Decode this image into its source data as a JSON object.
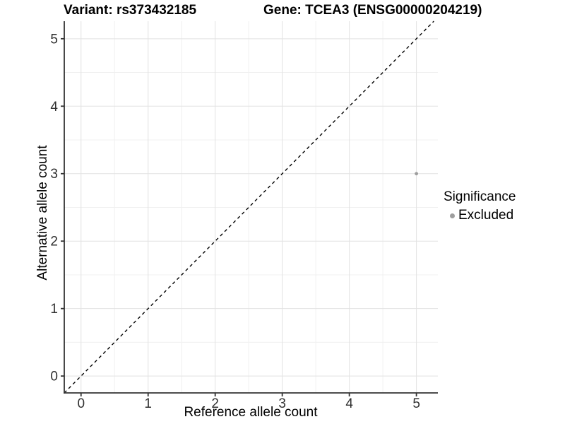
{
  "chart_data": {
    "type": "scatter",
    "title_left": "Variant: rs373432185",
    "title_right": "Gene: TCEA3 (ENSG00000204219)",
    "xlabel": "Reference allele count",
    "ylabel": "Alternative allele count",
    "xlim": [
      -0.25,
      5.32
    ],
    "ylim": [
      -0.25,
      5.26
    ],
    "x_ticks": [
      0,
      1,
      2,
      3,
      4,
      5
    ],
    "y_ticks": [
      0,
      1,
      2,
      3,
      4,
      5
    ],
    "grid": {
      "major": true,
      "minor": true,
      "major_color": "#e2e2e2",
      "minor_color": "#f0f0f0"
    },
    "reference_line": {
      "type": "identity-diagonal",
      "equation": "y = x",
      "style": "dashed",
      "color": "#000000"
    },
    "series": [
      {
        "name": "Excluded",
        "color": "#9e9e9e",
        "point_radius": 2.4,
        "points": [
          {
            "x": 5,
            "y": 3
          }
        ]
      }
    ],
    "legend": {
      "title": "Significance",
      "position": "right",
      "items": [
        {
          "label": "Excluded",
          "color": "#9e9e9e",
          "marker": "dot"
        }
      ]
    }
  },
  "colors": {
    "background": "#ffffff",
    "axis": "#333333",
    "tick_text": "#303030",
    "title_text": "#000000"
  }
}
